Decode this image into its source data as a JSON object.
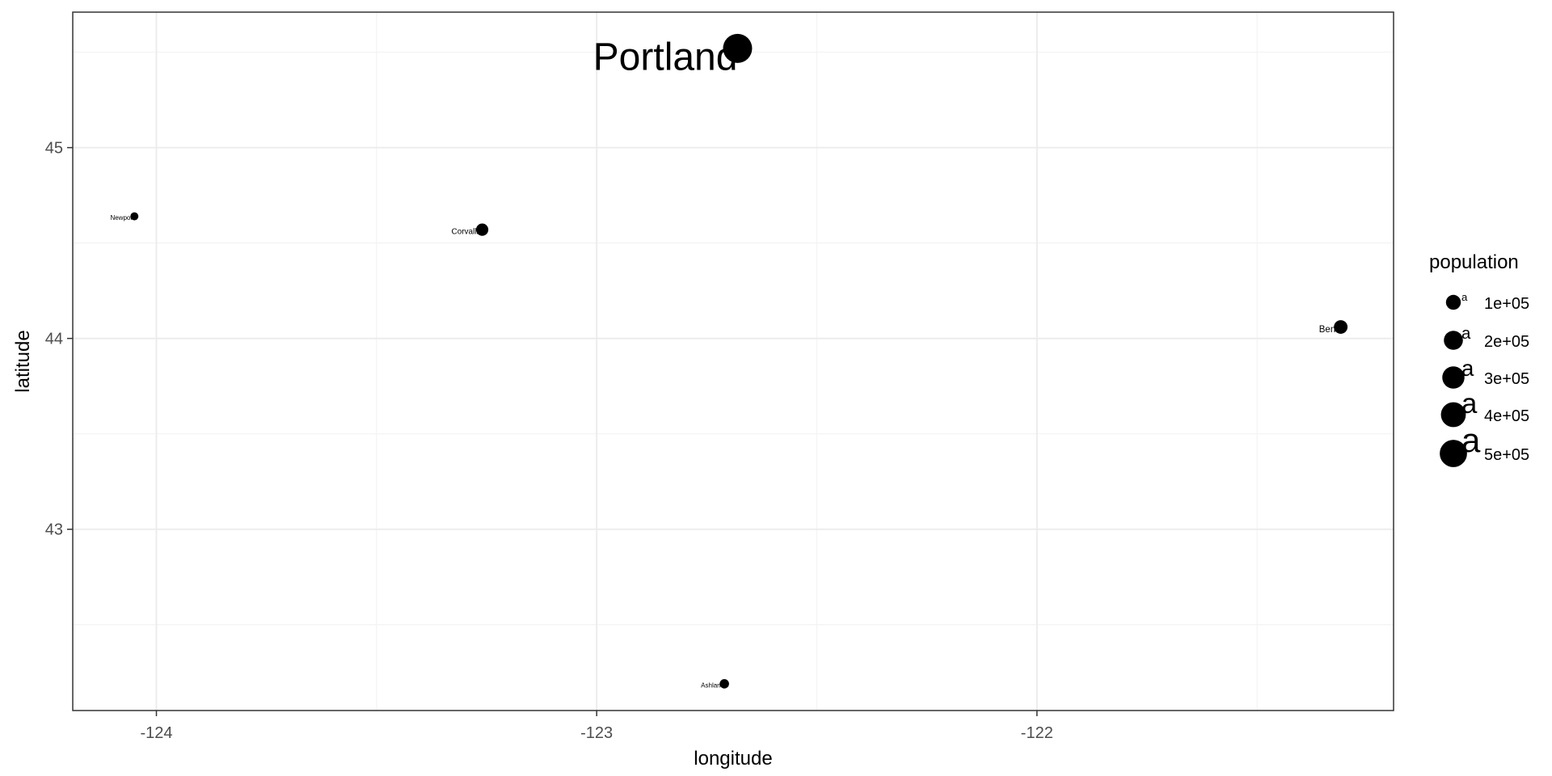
{
  "chart_data": {
    "type": "scatter",
    "title": "",
    "xlabel": "longitude",
    "ylabel": "latitude",
    "xlim": [
      -124.19,
      -121.19
    ],
    "ylim": [
      42.05,
      45.71
    ],
    "x_ticks": [
      -124,
      -123,
      -122
    ],
    "x_tick_labels": [
      "-124",
      "-123",
      "-122"
    ],
    "y_ticks": [
      43,
      44,
      45
    ],
    "y_tick_labels": [
      "43",
      "44",
      "45"
    ],
    "x_minor_ticks": [
      -123.5,
      -122.5,
      -121.5
    ],
    "y_minor_ticks": [
      42.5,
      43.5,
      44.5,
      45.5
    ],
    "grid": true,
    "legend_position": "right",
    "size_variable": "population",
    "points": [
      {
        "name": "Portland",
        "lon": -122.68,
        "lat": 45.52,
        "population": 583776
      },
      {
        "name": "Corvallis",
        "lon": -123.26,
        "lat": 44.57,
        "population": 54462
      },
      {
        "name": "Newport",
        "lon": -124.05,
        "lat": 44.64,
        "population": 10164
      },
      {
        "name": "Bend",
        "lon": -121.31,
        "lat": 44.06,
        "population": 76639
      },
      {
        "name": "Ashland",
        "lon": -122.71,
        "lat": 42.19,
        "population": 20078
      }
    ],
    "legend": {
      "title": "population",
      "key_glyph": "a",
      "entries": [
        {
          "value": 100000,
          "label": "1e+05"
        },
        {
          "value": 200000,
          "label": "2e+05"
        },
        {
          "value": 300000,
          "label": "3e+05"
        },
        {
          "value": 400000,
          "label": "4e+05"
        },
        {
          "value": 500000,
          "label": "5e+05"
        }
      ]
    },
    "colors": {
      "points": "#000000",
      "panel_border": "#333333",
      "grid_major": "#ebebeb",
      "grid_minor": "#f3f3f3",
      "tick_text": "#4d4d4d"
    }
  }
}
